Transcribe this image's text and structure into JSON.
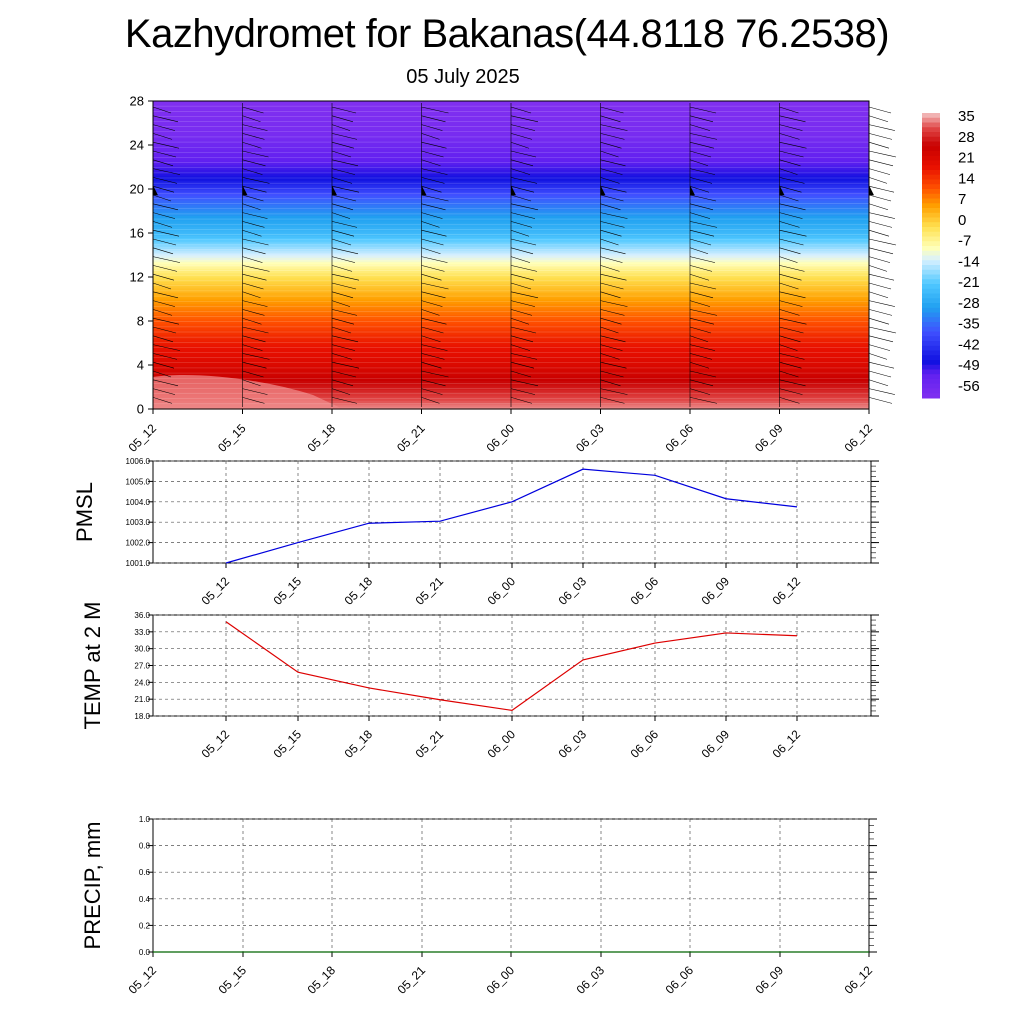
{
  "title": "Kazhydromet for Bakanas(44.8118 76.2538)",
  "subtitle": "05 July 2025",
  "time_labels": [
    "05_12",
    "05_15",
    "05_18",
    "05_21",
    "06_00",
    "06_03",
    "06_06",
    "06_09",
    "06_12"
  ],
  "colors": {
    "pmsl_line": "#0000dd",
    "temp_line": "#dd0000",
    "precip_line": "#006400",
    "barb": "#000000",
    "grid": "#555555"
  },
  "chart_data": [
    {
      "type": "heatmap",
      "name": "vertical-cross-section",
      "x_ticks": [
        "05_12",
        "05_15",
        "05_18",
        "05_21",
        "06_00",
        "06_03",
        "06_06",
        "06_09",
        "06_12"
      ],
      "y_ticks": [
        "0",
        "4",
        "8",
        "12",
        "16",
        "20",
        "24",
        "28"
      ],
      "ylim": [
        0,
        28
      ],
      "colorbar_ticks": [
        "35",
        "28",
        "21",
        "14",
        "7",
        "0",
        "-7",
        "-14",
        "-21",
        "-28",
        "-35",
        "-42",
        "-49",
        "-56"
      ],
      "color_stops": [
        {
          "value": 35,
          "color": "#f4c6c6"
        },
        {
          "value": 30,
          "color": "#e04848"
        },
        {
          "value": 24,
          "color": "#c80000"
        },
        {
          "value": 17,
          "color": "#e81000"
        },
        {
          "value": 10,
          "color": "#ff5000"
        },
        {
          "value": 4,
          "color": "#ffa000"
        },
        {
          "value": -3,
          "color": "#ffe050"
        },
        {
          "value": -10,
          "color": "#ffffb8"
        },
        {
          "value": -14,
          "color": "#d8f0ff"
        },
        {
          "value": -22,
          "color": "#50c8ff"
        },
        {
          "value": -30,
          "color": "#20a0f0"
        },
        {
          "value": -38,
          "color": "#4050ff"
        },
        {
          "value": -48,
          "color": "#1010e0"
        },
        {
          "value": -52,
          "color": "#6020f0"
        },
        {
          "value": -60,
          "color": "#8030f0"
        }
      ],
      "temperature_profile": [
        {
          "height": 0,
          "value": 33
        },
        {
          "height": 2,
          "value": 26
        },
        {
          "height": 4,
          "value": 20
        },
        {
          "height": 6,
          "value": 16
        },
        {
          "height": 8,
          "value": 10
        },
        {
          "height": 10,
          "value": 4
        },
        {
          "height": 12,
          "value": -3
        },
        {
          "height": 13.3,
          "value": -10
        },
        {
          "height": 14,
          "value": -14
        },
        {
          "height": 16,
          "value": -25
        },
        {
          "height": 18,
          "value": -32
        },
        {
          "height": 19.5,
          "value": -38
        },
        {
          "height": 21,
          "value": -48
        },
        {
          "height": 22.5,
          "value": -52
        },
        {
          "height": 25,
          "value": -58
        },
        {
          "height": 28,
          "value": -60
        }
      ]
    },
    {
      "type": "line",
      "name": "PMSL",
      "ylabel": "PMSL",
      "x": [
        "05_12",
        "05_15",
        "05_18",
        "05_21",
        "06_00",
        "06_03",
        "06_06",
        "06_09",
        "06_12"
      ],
      "values": [
        1001.0,
        1002.0,
        1002.95,
        1003.05,
        1004.0,
        1005.6,
        1005.3,
        1004.15,
        1003.75
      ],
      "ylim": [
        1001.0,
        1006.0
      ],
      "y_ticks": [
        "1001.0",
        "1002.0",
        "1003.0",
        "1004.0",
        "1005.0",
        "1006.0"
      ]
    },
    {
      "type": "line",
      "name": "TEMP at 2 M",
      "ylabel": "TEMP at 2 M",
      "x": [
        "05_12",
        "05_15",
        "05_18",
        "05_21",
        "06_00",
        "06_03",
        "06_06",
        "06_09",
        "06_12"
      ],
      "values": [
        34.8,
        25.8,
        23.0,
        20.9,
        19.0,
        28.0,
        31.0,
        32.8,
        32.3
      ],
      "ylim": [
        18.0,
        36.0
      ],
      "y_ticks": [
        "18.0",
        "21.0",
        "24.0",
        "27.0",
        "30.0",
        "33.0",
        "36.0"
      ]
    },
    {
      "type": "line",
      "name": "PRECIP, mm",
      "ylabel": "PRECIP, mm",
      "x": [
        "05_12",
        "05_15",
        "05_18",
        "05_21",
        "06_00",
        "06_03",
        "06_06",
        "06_09",
        "06_12"
      ],
      "values": [
        0,
        0,
        0,
        0,
        0,
        0,
        0,
        0,
        0
      ],
      "ylim": [
        0.0,
        1.0
      ],
      "y_ticks": [
        "0.0",
        "0.2",
        "0.4",
        "0.6",
        "0.8",
        "1.0"
      ]
    }
  ]
}
